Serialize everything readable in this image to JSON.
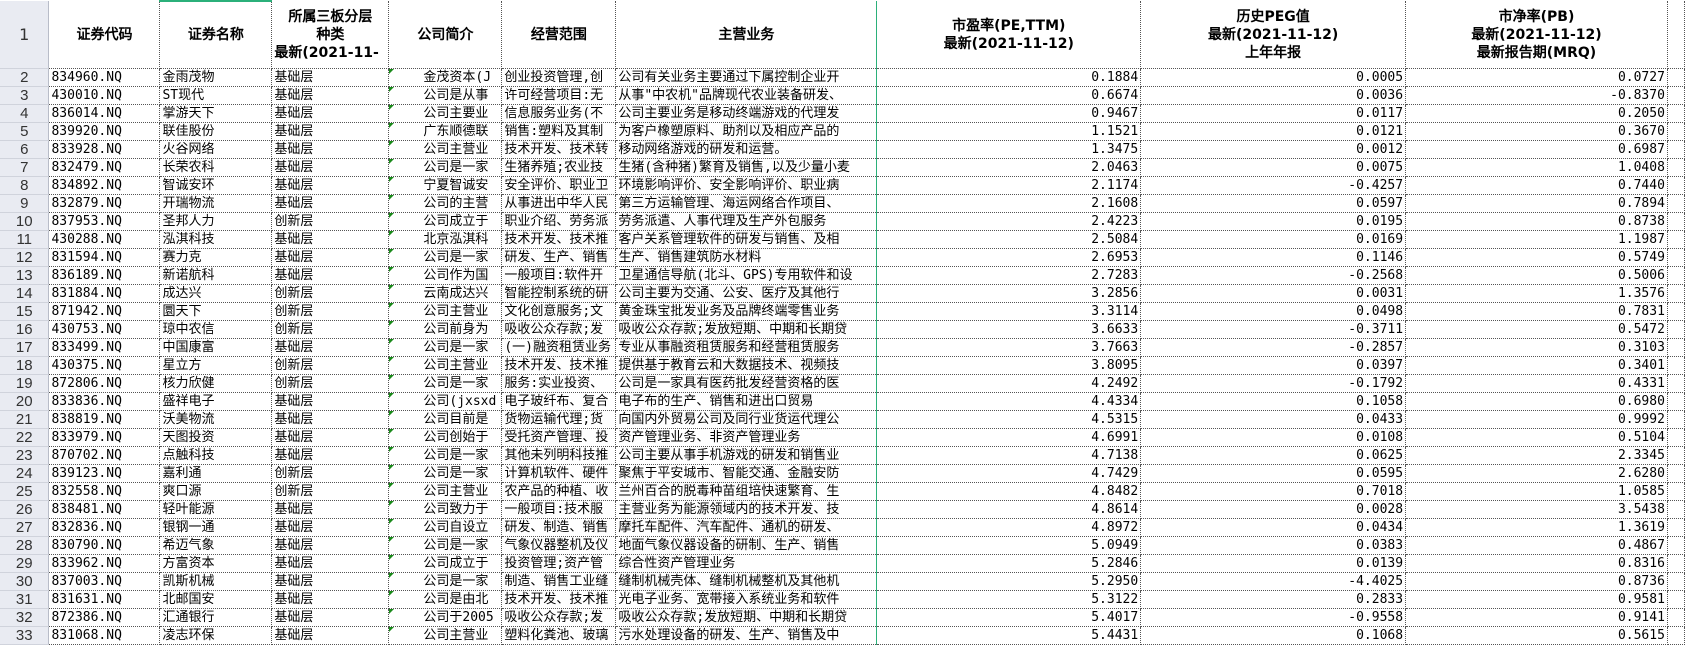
{
  "columns": {
    "row_header": "1",
    "code": "证券代码",
    "name": "证券名称",
    "tier": [
      "所属三板分层",
      "种类",
      "最新(2021-11-"
    ],
    "intro": "公司简介",
    "scope": "经营范围",
    "business": "主营业务",
    "pe": [
      "市盈率(PE,TTM)",
      "最新(2021-11-12)"
    ],
    "peg": [
      "历史PEG值",
      "最新(2021-11-12)",
      "上年年报"
    ],
    "pb": [
      "市净率(PB)",
      "最新(2021-11-12)",
      "最新报告期(MRQ)"
    ]
  },
  "rows": [
    {
      "n": "2",
      "code": "834960.NQ",
      "name": "金雨茂物",
      "tier": "基础层",
      "intro": "金茂资本(J",
      "scope": "创业投资管理,创",
      "business": "公司有关业务主要通过下属控制企业开",
      "pe": "0.1884",
      "peg": "0.0005",
      "pb": "0.0727"
    },
    {
      "n": "3",
      "code": "430010.NQ",
      "name": "ST现代",
      "tier": "基础层",
      "intro": "公司是从事",
      "scope": "许可经营项目:无",
      "business": "从事\"中农机\"品牌现代农业装备研发、",
      "pe": "0.6674",
      "peg": "0.0036",
      "pb": "-0.8370"
    },
    {
      "n": "4",
      "code": "836014.NQ",
      "name": "掌游天下",
      "tier": "基础层",
      "intro": "公司主要业",
      "scope": "信息服务业务(不",
      "business": "公司主要业务是移动终端游戏的代理发",
      "pe": "0.9467",
      "peg": "0.0117",
      "pb": "0.2050"
    },
    {
      "n": "5",
      "code": "839920.NQ",
      "name": "联佳股份",
      "tier": "基础层",
      "intro": "广东顺德联",
      "scope": "销售:塑料及其制",
      "business": "为客户橡塑原料、助剂以及相应产品的",
      "pe": "1.1521",
      "peg": "0.0121",
      "pb": "0.3670"
    },
    {
      "n": "6",
      "code": "833928.NQ",
      "name": "火谷网络",
      "tier": "基础层",
      "intro": "公司主营业",
      "scope": "技术开发、技术转",
      "business": "移动网络游戏的研发和运营。",
      "pe": "1.3475",
      "peg": "0.0012",
      "pb": "0.6987"
    },
    {
      "n": "7",
      "code": "832479.NQ",
      "name": "长荣农科",
      "tier": "基础层",
      "intro": "公司是一家",
      "scope": "生猪养殖;农业技",
      "business": "生猪(含种猪)繁育及销售,以及少量小麦",
      "pe": "2.0463",
      "peg": "0.0075",
      "pb": "1.0408"
    },
    {
      "n": "8",
      "code": "834892.NQ",
      "name": "智诚安环",
      "tier": "基础层",
      "intro": "宁夏智诚安",
      "scope": "安全评价、职业卫",
      "business": "环境影响评价、安全影响评价、职业病",
      "pe": "2.1174",
      "peg": "-0.4257",
      "pb": "0.7440"
    },
    {
      "n": "9",
      "code": "832879.NQ",
      "name": "开瑞物流",
      "tier": "基础层",
      "intro": "公司的主营",
      "scope": "从事进出中华人民",
      "business": "第三方运输管理、海运网络合作项目、",
      "pe": "2.1608",
      "peg": "0.0597",
      "pb": "0.7894"
    },
    {
      "n": "10",
      "code": "837953.NQ",
      "name": "圣邦人力",
      "tier": "创新层",
      "intro": "公司成立于",
      "scope": "职业介绍、劳务派",
      "business": "劳务派遣、人事代理及生产外包服务",
      "pe": "2.4223",
      "peg": "0.0195",
      "pb": "0.8738"
    },
    {
      "n": "11",
      "code": "430288.NQ",
      "name": "泓淇科技",
      "tier": "基础层",
      "intro": "北京泓淇科",
      "scope": "技术开发、技术推",
      "business": "客户关系管理软件的研发与销售、及相",
      "pe": "2.5084",
      "peg": "0.0169",
      "pb": "1.1987"
    },
    {
      "n": "12",
      "code": "831594.NQ",
      "name": "赛力克",
      "tier": "基础层",
      "intro": "公司是一家",
      "scope": "研发、生产、销售",
      "business": "生产、销售建筑防水材料",
      "pe": "2.6953",
      "peg": "0.1146",
      "pb": "0.5749"
    },
    {
      "n": "13",
      "code": "836189.NQ",
      "name": "新诺航科",
      "tier": "基础层",
      "intro": "公司作为国",
      "scope": "一般项目:软件开",
      "business": "卫星通信导航(北斗、GPS)专用软件和设",
      "pe": "2.7283",
      "peg": "-0.2568",
      "pb": "0.5006"
    },
    {
      "n": "14",
      "code": "831884.NQ",
      "name": "成达兴",
      "tier": "创新层",
      "intro": "云南成达兴",
      "scope": "智能控制系统的研",
      "business": "公司主要为交通、公安、医疗及其他行",
      "pe": "3.2856",
      "peg": "0.0031",
      "pb": "1.3576"
    },
    {
      "n": "15",
      "code": "871942.NQ",
      "name": "圜天下",
      "tier": "创新层",
      "intro": "公司主营业",
      "scope": "文化创意服务;文",
      "business": "黄金珠宝批发业务及品牌终端零售业务",
      "pe": "3.3114",
      "peg": "0.0498",
      "pb": "0.7831"
    },
    {
      "n": "16",
      "code": "430753.NQ",
      "name": "琼中农信",
      "tier": "创新层",
      "intro": "公司前身为",
      "scope": "吸收公众存款;发",
      "business": "吸收公众存款;发放短期、中期和长期贷",
      "pe": "3.6633",
      "peg": "-0.3711",
      "pb": "0.5472"
    },
    {
      "n": "17",
      "code": "833499.NQ",
      "name": "中国康富",
      "tier": "基础层",
      "intro": "公司是一家",
      "scope": "(一)融资租赁业务",
      "business": "专业从事融资租赁服务和经营租赁服务",
      "pe": "3.7663",
      "peg": "-0.2857",
      "pb": "0.3103"
    },
    {
      "n": "18",
      "code": "430375.NQ",
      "name": "星立方",
      "tier": "创新层",
      "intro": "公司主营业",
      "scope": "技术开发、技术推",
      "business": "提供基于教育云和大数据技术、视频技",
      "pe": "3.8095",
      "peg": "0.0397",
      "pb": "0.3401"
    },
    {
      "n": "19",
      "code": "872806.NQ",
      "name": "核力欣健",
      "tier": "创新层",
      "intro": "公司是一家",
      "scope": "服务:实业投资、",
      "business": "公司是一家具有医药批发经营资格的医",
      "pe": "4.2492",
      "peg": "-0.1792",
      "pb": "0.4331"
    },
    {
      "n": "20",
      "code": "833836.NQ",
      "name": "盛祥电子",
      "tier": "基础层",
      "intro": "公司(jxsxd",
      "scope": "电子玻纤布、复合",
      "business": "电子布的生产、销售和进出口贸易",
      "pe": "4.4334",
      "peg": "0.1058",
      "pb": "0.6980"
    },
    {
      "n": "21",
      "code": "838819.NQ",
      "name": "沃美物流",
      "tier": "基础层",
      "intro": "公司目前是",
      "scope": "货物运输代理;货",
      "business": "向国内外贸易公司及同行业货运代理公",
      "pe": "4.5315",
      "peg": "0.0433",
      "pb": "0.9992"
    },
    {
      "n": "22",
      "code": "833979.NQ",
      "name": "天图投资",
      "tier": "基础层",
      "intro": "公司创始于",
      "scope": "受托资产管理、投",
      "business": "资产管理业务、非资产管理业务",
      "pe": "4.6991",
      "peg": "0.0108",
      "pb": "0.5104"
    },
    {
      "n": "23",
      "code": "870702.NQ",
      "name": "点触科技",
      "tier": "基础层",
      "intro": "公司是一家",
      "scope": "其他未列明科技推",
      "business": "公司主要从事手机游戏的研发和销售业",
      "pe": "4.7138",
      "peg": "0.0625",
      "pb": "2.3345"
    },
    {
      "n": "24",
      "code": "839123.NQ",
      "name": "嘉利通",
      "tier": "创新层",
      "intro": "公司是一家",
      "scope": "计算机软件、硬件",
      "business": "聚焦于平安城市、智能交通、金融安防",
      "pe": "4.7429",
      "peg": "0.0595",
      "pb": "2.6280"
    },
    {
      "n": "25",
      "code": "832558.NQ",
      "name": "爽口源",
      "tier": "创新层",
      "intro": "公司主营业",
      "scope": "农产品的种植、收",
      "business": "兰州百合的脱毒种苗组培快速繁育、生",
      "pe": "4.8482",
      "peg": "0.7018",
      "pb": "1.0585"
    },
    {
      "n": "26",
      "code": "838481.NQ",
      "name": "轻叶能源",
      "tier": "基础层",
      "intro": "公司致力于",
      "scope": "一般项目:技术服",
      "business": "主营业务为能源领域内的技术开发、技",
      "pe": "4.8614",
      "peg": "0.0028",
      "pb": "3.5438"
    },
    {
      "n": "27",
      "code": "832836.NQ",
      "name": "银钢一通",
      "tier": "基础层",
      "intro": "公司自设立",
      "scope": "研发、制造、销售",
      "business": "摩托车配件、汽车配件、通机的研发、",
      "pe": "4.8972",
      "peg": "0.0434",
      "pb": "1.3619"
    },
    {
      "n": "28",
      "code": "830790.NQ",
      "name": "希迈气象",
      "tier": "基础层",
      "intro": "公司是一家",
      "scope": "气象仪器整机及仪",
      "business": "地面气象仪器设备的研制、生产、销售",
      "pe": "5.0949",
      "peg": "0.0383",
      "pb": "0.4867"
    },
    {
      "n": "29",
      "code": "833962.NQ",
      "name": "方富资本",
      "tier": "基础层",
      "intro": "公司成立于",
      "scope": "投资管理;资产管",
      "business": "综合性资产管理业务",
      "pe": "5.2846",
      "peg": "0.0139",
      "pb": "0.8316"
    },
    {
      "n": "30",
      "code": "837003.NQ",
      "name": "凯斯机械",
      "tier": "基础层",
      "intro": "公司是一家",
      "scope": "制造、销售工业缝",
      "business": "缝制机械壳体、缝制机械整机及其他机",
      "pe": "5.2950",
      "peg": "-4.4025",
      "pb": "0.8736"
    },
    {
      "n": "31",
      "code": "831631.NQ",
      "name": "北邮国安",
      "tier": "基础层",
      "intro": "公司是由北",
      "scope": "技术开发、技术推",
      "business": "光电子业务、宽带接入系统业务和软件",
      "pe": "5.3122",
      "peg": "0.2833",
      "pb": "0.9581"
    },
    {
      "n": "32",
      "code": "872386.NQ",
      "name": "汇通银行",
      "tier": "基础层",
      "intro": "公司于2005",
      "scope": "吸收公众存款;发",
      "business": "吸收公众存款;发放短期、中期和长期贷",
      "pe": "5.4017",
      "peg": "-0.9558",
      "pb": "0.9141"
    },
    {
      "n": "33",
      "code": "831068.NQ",
      "name": "凌志环保",
      "tier": "基础层",
      "intro": "公司主营业",
      "scope": "塑料化粪池、玻璃",
      "business": "污水处理设备的研发、生产、销售及中",
      "pe": "5.4431",
      "peg": "0.1068",
      "pb": "0.5615"
    }
  ]
}
